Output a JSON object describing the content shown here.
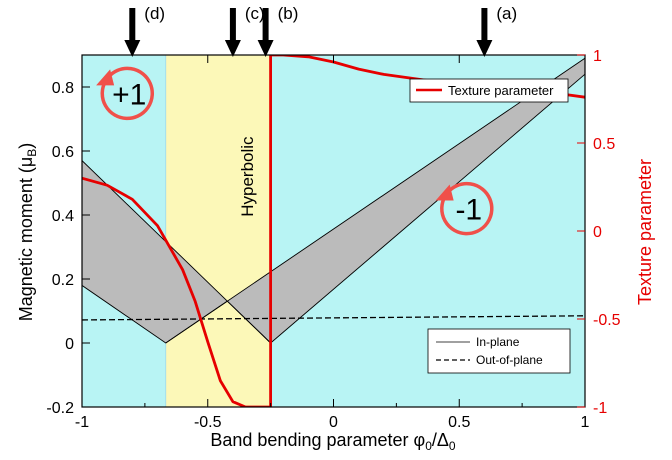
{
  "chart_data": {
    "type": "area",
    "xlabel_main": "Band bending parameter φ",
    "xlabel_sub1": "0",
    "xlabel_mid": "/Δ",
    "xlabel_sub2": "0",
    "ylabel_main": "Magnetic moment (μ",
    "ylabel_sub": "B",
    "ylabel_close": ")",
    "ylabel_right": "Texture parameter",
    "xlim": [
      -1,
      1
    ],
    "ylim_left": [
      -0.2,
      0.9
    ],
    "ylim_right": [
      -1,
      1
    ],
    "x_ticks": [
      -1,
      -0.5,
      0,
      0.5,
      1
    ],
    "x_tick_labels": [
      "-1",
      "-0.5",
      "0",
      "0.5",
      "1"
    ],
    "y_left_ticks": [
      -0.2,
      0,
      0.2,
      0.4,
      0.6,
      0.8
    ],
    "y_left_tick_labels": [
      "-0.2",
      "0",
      "0.2",
      "0.4",
      "0.6",
      "0.8"
    ],
    "y_right_ticks": [
      -1,
      -0.5,
      0,
      0.5,
      1
    ],
    "y_right_tick_labels": [
      "-1",
      "-0.5",
      "0",
      "0.5",
      "1"
    ],
    "regions": [
      {
        "x": [
          -1,
          -0.667
        ],
        "color": "#b8f4f4"
      },
      {
        "x": [
          -0.667,
          -0.25
        ],
        "color": "#fcf8b8",
        "label": "Hyperbolic"
      },
      {
        "x": [
          -0.25,
          1
        ],
        "color": "#b8f4f4"
      }
    ],
    "in_plane_band": {
      "x": [
        -1,
        -0.667,
        -0.25,
        1
      ],
      "upper": [
        0.57,
        0.25,
        0.08,
        0.89
      ],
      "lower": [
        0.18,
        0.0,
        0.0,
        0.84
      ],
      "upper_mid": [
        {
          "x": -0.425,
          "y": 0.0
        },
        {
          "x": -0.425,
          "y": 0.22
        }
      ]
    },
    "out_of_plane": {
      "x": [
        -1,
        1
      ],
      "y": [
        0.072,
        0.085
      ]
    },
    "texture_parameter": {
      "x": [
        -1,
        -0.9,
        -0.8,
        -0.7,
        -0.6,
        -0.55,
        -0.5,
        -0.45,
        -0.4,
        -0.35,
        -0.3,
        -0.25,
        -0.25,
        -0.2,
        -0.1,
        0,
        0.1,
        0.2,
        0.3,
        0.4,
        0.5,
        0.6,
        0.7,
        0.8,
        0.9,
        1
      ],
      "y": [
        0.3,
        0.26,
        0.18,
        0.03,
        -0.22,
        -0.4,
        -0.63,
        -0.85,
        -0.97,
        -1.0,
        -1.0,
        -1.0,
        1.0,
        1.0,
        0.99,
        0.96,
        0.92,
        0.89,
        0.87,
        0.85,
        0.83,
        0.82,
        0.81,
        0.8,
        0.78,
        0.76
      ]
    },
    "arrows": [
      {
        "x": -0.8,
        "label": "(d)"
      },
      {
        "x": -0.4,
        "label": "(c)"
      },
      {
        "x": -0.27,
        "label": "(b)"
      },
      {
        "x": 0.6,
        "label": "(a)"
      }
    ],
    "winding_labels": [
      {
        "text": "+1",
        "x": -0.82,
        "y": 0.78,
        "direction": "clockwise"
      },
      {
        "text": "-1",
        "x": 0.53,
        "y": 0.42,
        "direction": "counterclockwise"
      }
    ],
    "legend_top": {
      "label": "Texture parameter",
      "placement": "top-right"
    },
    "legend_bottom": {
      "placement": "bottom-right",
      "entries": [
        {
          "label": "In-plane",
          "style": "solid"
        },
        {
          "label": "Out-of-plane",
          "style": "dashed"
        }
      ]
    },
    "colors": {
      "cyan": "#b8f4f4",
      "yellow": "#fcf8b8",
      "band_fill": "#bbbbbb",
      "texture": "#e60000",
      "winding": "#f0504a"
    }
  }
}
